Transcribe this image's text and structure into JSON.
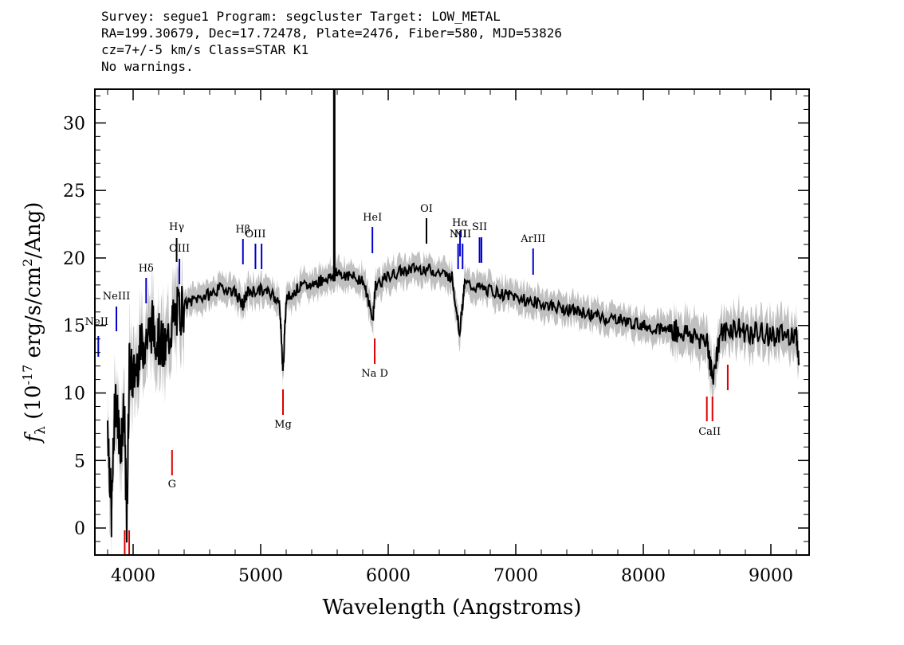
{
  "header": {
    "line1": "Survey: segue1 Program: segcluster Target: LOW_METAL",
    "line2": "RA=199.30679, Dec=17.72478, Plate=2476, Fiber=580, MJD=53826",
    "line3": "cz=7+/-5 km/s Class=STAR K1",
    "line4": "No warnings."
  },
  "chart_data": {
    "type": "line",
    "xlabel": "Wavelength (Angstroms)",
    "ylabel": "f_λ (10^-17 erg/s/cm^2/Ang)",
    "xlim": [
      3700,
      9300
    ],
    "ylim": [
      -2,
      32.5
    ],
    "xticks": [
      4000,
      5000,
      6000,
      7000,
      8000,
      9000
    ],
    "yticks": [
      0,
      5,
      10,
      15,
      20,
      25,
      30
    ],
    "grid": false,
    "colors": {
      "flux": "#000000",
      "error_band": "#c0c0c0",
      "emission": "#0000cc",
      "absorption": "#dd0000"
    },
    "series": [
      {
        "values_x": [
          3800,
          3830,
          3860,
          3900,
          3930,
          3950,
          3970,
          4000,
          4050,
          4100,
          4150,
          4200,
          4250,
          4300,
          4350,
          4400,
          4500,
          4600,
          4700,
          4800,
          4860,
          4900,
          5000,
          5100,
          5150,
          5175,
          5200,
          5300,
          5400,
          5500,
          5580,
          5600,
          5700,
          5800,
          5880,
          5900,
          6000,
          6100,
          6200,
          6300,
          6400,
          6500,
          6560,
          6600,
          6700,
          6800,
          6900,
          7000,
          7100,
          7200,
          7300,
          7400,
          7500,
          7600,
          7700,
          7800,
          7900,
          8000,
          8100,
          8200,
          8300,
          8400,
          8500,
          8540,
          8600,
          8700,
          8800,
          8900,
          9000,
          9100,
          9200,
          9220
        ],
        "values_y": [
          8,
          1,
          10,
          6,
          9,
          0,
          12,
          11,
          13,
          14,
          15,
          14,
          13,
          15,
          16,
          16.5,
          17,
          17.3,
          17.8,
          17.5,
          16.5,
          17.5,
          17.6,
          17.3,
          16.5,
          11.5,
          17,
          17.8,
          18,
          18.5,
          18.6,
          19,
          18.6,
          18.4,
          15.5,
          18,
          18.6,
          19,
          19.2,
          19.2,
          18.9,
          18.6,
          14.5,
          18.1,
          17.8,
          17.6,
          17.3,
          17.1,
          16.8,
          16.6,
          16.4,
          16.2,
          16,
          15.8,
          15.5,
          15.5,
          15.2,
          15,
          14.8,
          14.7,
          14.5,
          14.2,
          14,
          11,
          14.2,
          14.8,
          14.5,
          14.4,
          14.3,
          14.2,
          14.5,
          12.2
        ],
        "values": []
      }
    ],
    "sky_spike": {
      "x": 5577,
      "y": 32.5
    },
    "emission_lines": [
      {
        "label": "NeII",
        "x": 3727
      },
      {
        "label": "NeIII",
        "x": 3869
      },
      {
        "label": "Hδ",
        "x": 4102
      },
      {
        "label": "Hγ",
        "x": 4341
      },
      {
        "label": "OIII",
        "x": 4363
      },
      {
        "label": "Hβ",
        "x": 4861
      },
      {
        "label": "OIII",
        "x": 4959
      },
      {
        "label": "",
        "x": 5007
      },
      {
        "label": "HeI",
        "x": 5876
      },
      {
        "label": "OI",
        "x": 6300
      },
      {
        "label": "NII",
        "x": 6548
      },
      {
        "label": "Hα",
        "x": 6563
      },
      {
        "label": "NII",
        "x": 6583
      },
      {
        "label": "SII",
        "x": 6716
      },
      {
        "label": "",
        "x": 6731
      },
      {
        "label": "ArIII",
        "x": 7136
      }
    ],
    "absorption_lines": [
      {
        "label": "",
        "x": 3934
      },
      {
        "label": "",
        "x": 3969
      },
      {
        "label": "G",
        "x": 4305
      },
      {
        "label": "Mg",
        "x": 5175
      },
      {
        "label": "Na D",
        "x": 5894
      },
      {
        "label": "CaII",
        "x": 8498
      },
      {
        "label": "",
        "x": 8542
      },
      {
        "label": "",
        "x": 8662
      }
    ]
  }
}
